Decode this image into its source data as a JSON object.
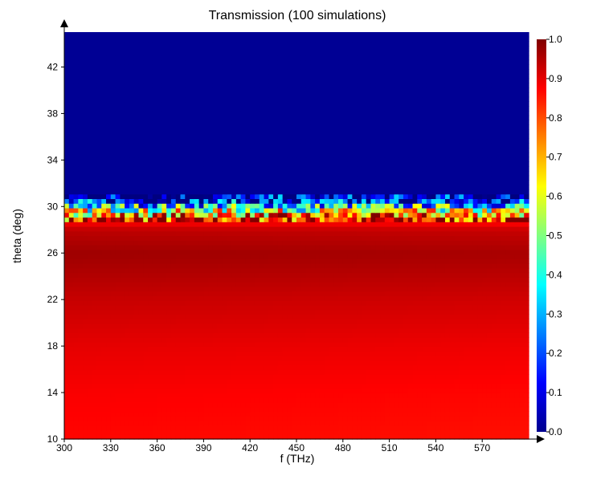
{
  "chart_data": {
    "type": "heatmap",
    "title": "Transmission (100 simulations)",
    "xlabel": "f (THz)",
    "ylabel": "theta (deg)",
    "xlim": [
      300,
      600
    ],
    "ylim": [
      10,
      45
    ],
    "x_ticks": [
      "300",
      "330",
      "360",
      "390",
      "420",
      "450",
      "480",
      "510",
      "540",
      "570"
    ],
    "y_ticks": [
      "10",
      "14",
      "18",
      "22",
      "26",
      "30",
      "34",
      "38",
      "42"
    ],
    "colorbar": {
      "min": 0.0,
      "max": 1.0,
      "ticks": [
        "0.0",
        "0.1",
        "0.2",
        "0.3",
        "0.4",
        "0.5",
        "0.6",
        "0.7",
        "0.8",
        "0.9",
        "1.0"
      ],
      "colormap": "jet"
    },
    "grid_size": {
      "columns": 100,
      "rows": 88
    },
    "description_of_values": {
      "transmission_below_30deg": "0.85-0.95 (peak ~0.97 near 26 deg)",
      "transmission_transition_29_to_31deg": "0.3-0.8 speckled",
      "transmission_above_31deg": 0.02
    },
    "profile_theta": [
      10,
      14,
      18,
      22,
      26,
      28,
      29,
      29.5,
      30,
      30.5,
      31,
      45
    ],
    "profile_value": [
      0.87,
      0.88,
      0.9,
      0.93,
      0.97,
      0.94,
      0.85,
      0.65,
      0.4,
      0.12,
      0.02,
      0.02
    ]
  }
}
